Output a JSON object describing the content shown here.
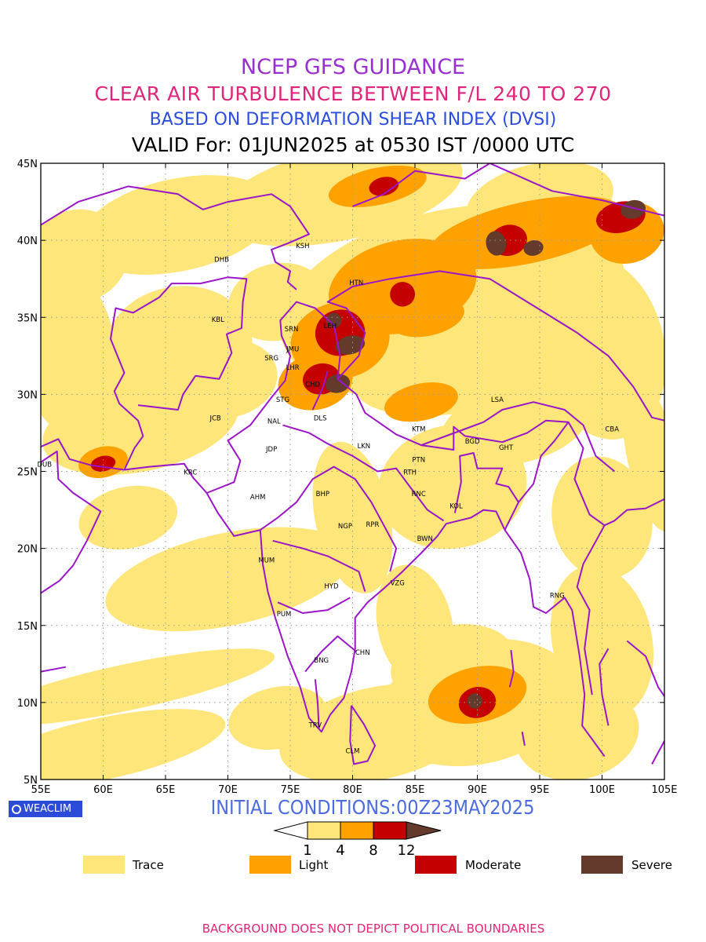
{
  "header": {
    "line1": "NCEP GFS GUIDANCE",
    "line2": "CLEAR AIR TURBULENCE BETWEEN F/L 240 TO 270",
    "line3": "BASED ON DEFORMATION SHEAR INDEX (DVSI)",
    "line4": "VALID For: 01JUN2025 at 0530 IST /0000 UTC"
  },
  "colors": {
    "line1": "#9a2fd0",
    "line2": "#e0267a",
    "line3": "#2c4de0",
    "line4": "#000000",
    "boundary": "#9b16c9",
    "trace": "#ffe67a",
    "light": "#ffa200",
    "moderate": "#c40000",
    "severe": "#633a2c"
  },
  "map": {
    "lon_range": [
      55,
      105
    ],
    "lat_range": [
      5,
      45
    ],
    "lon_ticks": [
      "55E",
      "60E",
      "65E",
      "70E",
      "75E",
      "80E",
      "85E",
      "90E",
      "95E",
      "100E",
      "105E"
    ],
    "lat_ticks": [
      "45N",
      "40N",
      "35N",
      "30N",
      "25N",
      "20N",
      "15N",
      "10N",
      "5N"
    ],
    "gridlines": true,
    "cities": [
      {
        "code": "KSH",
        "lon": 76.0,
        "lat": 39.5
      },
      {
        "code": "DHB",
        "lon": 69.5,
        "lat": 38.6
      },
      {
        "code": "HTN",
        "lon": 80.3,
        "lat": 37.1
      },
      {
        "code": "KBL",
        "lon": 69.2,
        "lat": 34.7
      },
      {
        "code": "SRN",
        "lon": 75.1,
        "lat": 34.1
      },
      {
        "code": "LEH",
        "lon": 78.2,
        "lat": 34.3
      },
      {
        "code": "JMU",
        "lon": 75.2,
        "lat": 32.8
      },
      {
        "code": "SRG",
        "lon": 73.5,
        "lat": 32.2
      },
      {
        "code": "LHR",
        "lon": 75.2,
        "lat": 31.6
      },
      {
        "code": "CHD",
        "lon": 76.8,
        "lat": 30.5
      },
      {
        "code": "STG",
        "lon": 74.4,
        "lat": 29.5
      },
      {
        "code": "LSA",
        "lon": 91.6,
        "lat": 29.5
      },
      {
        "code": "JCB",
        "lon": 69.0,
        "lat": 28.3
      },
      {
        "code": "NAL",
        "lon": 73.7,
        "lat": 28.1
      },
      {
        "code": "DLS",
        "lon": 77.4,
        "lat": 28.3
      },
      {
        "code": "CBA",
        "lon": 100.8,
        "lat": 27.6
      },
      {
        "code": "KTM",
        "lon": 85.3,
        "lat": 27.6
      },
      {
        "code": "BGD",
        "lon": 89.6,
        "lat": 26.8
      },
      {
        "code": "GHT",
        "lon": 92.3,
        "lat": 26.4
      },
      {
        "code": "LKN",
        "lon": 80.9,
        "lat": 26.5
      },
      {
        "code": "JDP",
        "lon": 73.5,
        "lat": 26.3
      },
      {
        "code": "PTN",
        "lon": 85.3,
        "lat": 25.6
      },
      {
        "code": "DUB",
        "lon": 55.3,
        "lat": 25.3
      },
      {
        "code": "KRC",
        "lon": 67.0,
        "lat": 24.8
      },
      {
        "code": "RTH",
        "lon": 84.6,
        "lat": 24.8
      },
      {
        "code": "BHP",
        "lon": 77.6,
        "lat": 23.4
      },
      {
        "code": "RNC",
        "lon": 85.3,
        "lat": 23.4
      },
      {
        "code": "AHM",
        "lon": 72.4,
        "lat": 23.2
      },
      {
        "code": "KOL",
        "lon": 88.3,
        "lat": 22.6
      },
      {
        "code": "NGP",
        "lon": 79.4,
        "lat": 21.3
      },
      {
        "code": "RPR",
        "lon": 81.6,
        "lat": 21.4
      },
      {
        "code": "BWN",
        "lon": 85.8,
        "lat": 20.5
      },
      {
        "code": "MUM",
        "lon": 73.1,
        "lat": 19.1
      },
      {
        "code": "HYD",
        "lon": 78.3,
        "lat": 17.4
      },
      {
        "code": "VZG",
        "lon": 83.6,
        "lat": 17.6
      },
      {
        "code": "RNG",
        "lon": 96.4,
        "lat": 16.8
      },
      {
        "code": "PUM",
        "lon": 74.5,
        "lat": 15.6
      },
      {
        "code": "CHN",
        "lon": 80.8,
        "lat": 13.1
      },
      {
        "code": "BNG",
        "lon": 77.5,
        "lat": 12.6
      },
      {
        "code": "TRV",
        "lon": 77.0,
        "lat": 8.4
      },
      {
        "code": "CLM",
        "lon": 80.0,
        "lat": 6.7
      }
    ]
  },
  "turbulence": {
    "levels": [
      {
        "name": "trace",
        "patches": [
          [
            88,
            36,
            14,
            6
          ],
          [
            95,
            42.5,
            6,
            2.5
          ],
          [
            79,
            43,
            10,
            3
          ],
          [
            66,
            41,
            8,
            3
          ],
          [
            58,
            39,
            4,
            3
          ],
          [
            57,
            33,
            4,
            6
          ],
          [
            66,
            33,
            6,
            4
          ],
          [
            63,
            28,
            8,
            3
          ],
          [
            90,
            32,
            10,
            3
          ],
          [
            100,
            33,
            5,
            6
          ],
          [
            88,
            24,
            6,
            4
          ],
          [
            70,
            18,
            10,
            3
          ],
          [
            62,
            11,
            12,
            1.5
          ],
          [
            60,
            7,
            10,
            2
          ],
          [
            82,
            8,
            8,
            3
          ],
          [
            90,
            10,
            8,
            4
          ],
          [
            98,
            8,
            5,
            3
          ],
          [
            100,
            14,
            4,
            5
          ],
          [
            100,
            22,
            4,
            4
          ],
          [
            74,
            36,
            4,
            2.5
          ],
          [
            85,
            15,
            3,
            4
          ],
          [
            93,
            28,
            6,
            2.5
          ],
          [
            62,
            22,
            4,
            2
          ],
          [
            80,
            22,
            3,
            5
          ],
          [
            96,
            37,
            4,
            3
          ],
          [
            70,
            31,
            4,
            2.5
          ],
          [
            88,
            12.5,
            5,
            2.5
          ],
          [
            74,
            9,
            4,
            2
          ],
          [
            104,
            26,
            2,
            5
          ]
        ]
      },
      {
        "name": "light",
        "patches": [
          [
            84,
            37,
            6,
            3
          ],
          [
            94,
            40.5,
            8,
            2
          ],
          [
            79,
            33.5,
            4,
            2.5
          ],
          [
            77,
            30.8,
            3,
            1.8
          ],
          [
            102,
            40.5,
            3,
            2
          ],
          [
            90,
            10.5,
            4,
            1.8
          ],
          [
            82,
            43.5,
            4,
            1.2
          ],
          [
            86,
            35,
            3,
            1.2
          ],
          [
            60,
            25.6,
            2,
            1
          ],
          [
            85.5,
            29.5,
            3,
            1.2
          ]
        ]
      },
      {
        "name": "moderate",
        "patches": [
          [
            79,
            34,
            2,
            1.5
          ],
          [
            77.5,
            31,
            1.5,
            1
          ],
          [
            92.5,
            40,
            1.5,
            1
          ],
          [
            101.5,
            41.5,
            2,
            1
          ],
          [
            90,
            10,
            1.5,
            1
          ],
          [
            84,
            36.5,
            1,
            0.8
          ],
          [
            60,
            25.5,
            1,
            0.5
          ],
          [
            82.5,
            43.5,
            1.2,
            0.6
          ]
        ]
      },
      {
        "name": "severe",
        "patches": [
          [
            78.8,
            30.7,
            1,
            0.6
          ],
          [
            79.8,
            33.2,
            1.2,
            0.6
          ],
          [
            91.5,
            39.8,
            0.8,
            0.8
          ],
          [
            102.5,
            42,
            1,
            0.6
          ],
          [
            89.8,
            10.1,
            0.6,
            0.5
          ],
          [
            78.5,
            34.8,
            0.6,
            0.5
          ],
          [
            94.5,
            39.5,
            0.8,
            0.5
          ]
        ]
      }
    ]
  },
  "footer": {
    "logo_text": "WEACLIM",
    "initial_conditions": "INITIAL CONDITIONS:00Z23MAY2025",
    "note": "BACKGROUND DOES NOT DEPICT POLITICAL BOUNDARIES"
  },
  "colorbar": {
    "ticks": [
      "1",
      "4",
      "8",
      "12"
    ]
  },
  "legend": [
    {
      "label": "Trace",
      "color": "#ffe67a"
    },
    {
      "label": "Light",
      "color": "#ffa200"
    },
    {
      "label": "Moderate",
      "color": "#c40000"
    },
    {
      "label": "Severe",
      "color": "#633a2c"
    }
  ]
}
